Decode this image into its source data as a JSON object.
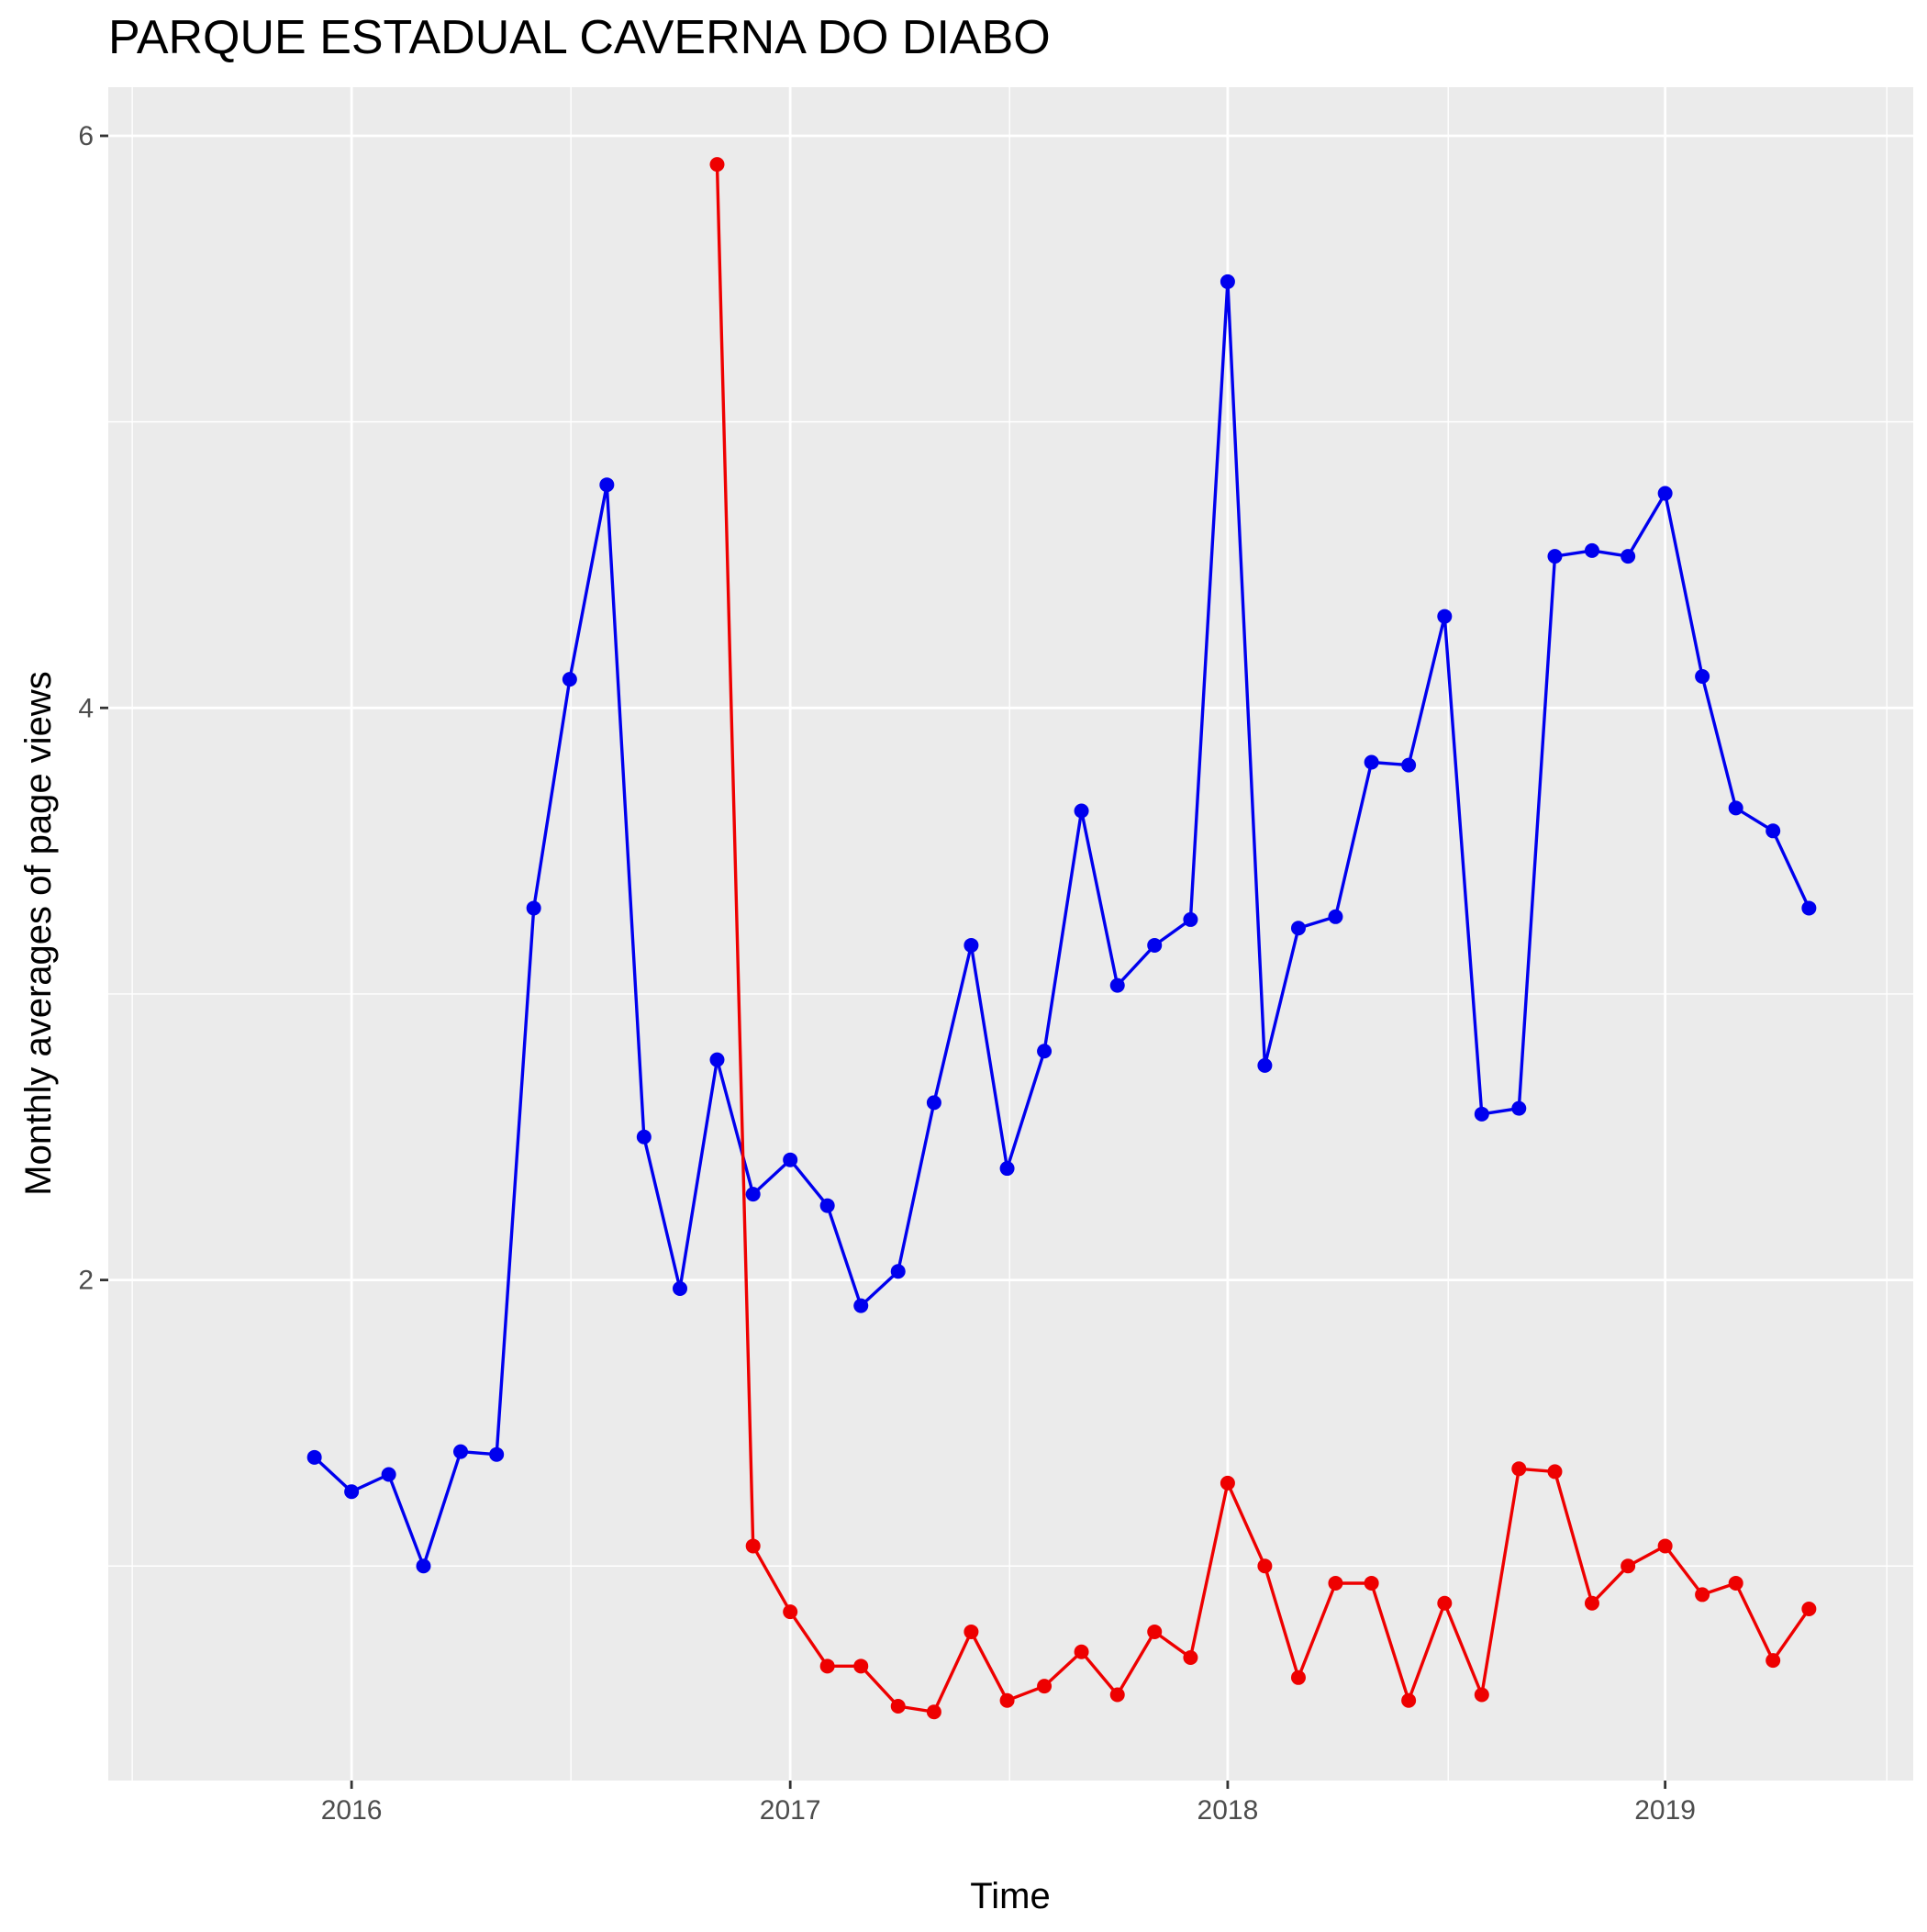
{
  "chart_data": {
    "type": "line",
    "title": "PARQUE ESTADUAL CAVERNA DO DIABO",
    "xlabel": "Time",
    "ylabel": "Monthly averages of page views",
    "xlim": [
      "2015-06-12",
      "2019-07-27"
    ],
    "ylim": [
      0.25,
      6.17
    ],
    "x_ticks": [
      {
        "date": "2016-01-01",
        "label": "2016"
      },
      {
        "date": "2017-01-01",
        "label": "2017"
      },
      {
        "date": "2018-01-01",
        "label": "2018"
      },
      {
        "date": "2019-01-01",
        "label": "2019"
      }
    ],
    "y_ticks": [
      {
        "value": 2,
        "label": "2"
      },
      {
        "value": 4,
        "label": "4"
      },
      {
        "value": 6,
        "label": "6"
      }
    ],
    "grid": true,
    "legend": "none",
    "series": [
      {
        "color": "#0000ee",
        "points": [
          [
            "2015-12-01",
            1.38
          ],
          [
            "2016-01-01",
            1.26
          ],
          [
            "2016-02-01",
            1.32
          ],
          [
            "2016-03-01",
            1.0
          ],
          [
            "2016-04-01",
            1.4
          ],
          [
            "2016-05-01",
            1.39
          ],
          [
            "2016-06-01",
            3.3
          ],
          [
            "2016-07-01",
            4.1
          ],
          [
            "2016-08-01",
            4.78
          ],
          [
            "2016-09-01",
            2.5
          ],
          [
            "2016-10-01",
            1.97
          ],
          [
            "2016-11-01",
            2.77
          ],
          [
            "2016-12-01",
            2.3
          ],
          [
            "2017-01-01",
            2.42
          ],
          [
            "2017-02-01",
            2.26
          ],
          [
            "2017-03-01",
            1.91
          ],
          [
            "2017-04-01",
            2.03
          ],
          [
            "2017-05-01",
            2.62
          ],
          [
            "2017-06-01",
            3.17
          ],
          [
            "2017-07-01",
            2.39
          ],
          [
            "2017-08-01",
            2.8
          ],
          [
            "2017-09-01",
            3.64
          ],
          [
            "2017-10-01",
            3.03
          ],
          [
            "2017-11-01",
            3.17
          ],
          [
            "2017-12-01",
            3.26
          ],
          [
            "2018-01-01",
            5.49
          ],
          [
            "2018-02-01",
            2.75
          ],
          [
            "2018-03-01",
            3.23
          ],
          [
            "2018-04-01",
            3.27
          ],
          [
            "2018-05-01",
            3.81
          ],
          [
            "2018-06-01",
            3.8
          ],
          [
            "2018-07-01",
            4.32
          ],
          [
            "2018-08-01",
            2.58
          ],
          [
            "2018-09-01",
            2.6
          ],
          [
            "2018-10-01",
            4.53
          ],
          [
            "2018-11-01",
            4.55
          ],
          [
            "2018-12-01",
            4.53
          ],
          [
            "2019-01-01",
            4.75
          ],
          [
            "2019-02-01",
            4.11
          ],
          [
            "2019-03-01",
            3.65
          ],
          [
            "2019-04-01",
            3.57
          ],
          [
            "2019-05-01",
            3.3
          ]
        ]
      },
      {
        "color": "#ee0000",
        "points": [
          [
            "2016-11-01",
            5.9
          ],
          [
            "2016-12-01",
            1.07
          ],
          [
            "2017-01-01",
            0.84
          ],
          [
            "2017-02-01",
            0.65
          ],
          [
            "2017-03-01",
            0.65
          ],
          [
            "2017-04-01",
            0.51
          ],
          [
            "2017-05-01",
            0.49
          ],
          [
            "2017-06-01",
            0.77
          ],
          [
            "2017-07-01",
            0.53
          ],
          [
            "2017-08-01",
            0.58
          ],
          [
            "2017-09-01",
            0.7
          ],
          [
            "2017-10-01",
            0.55
          ],
          [
            "2017-11-01",
            0.77
          ],
          [
            "2017-12-01",
            0.68
          ],
          [
            "2018-01-01",
            1.29
          ],
          [
            "2018-02-01",
            1.0
          ],
          [
            "2018-03-01",
            0.61
          ],
          [
            "2018-04-01",
            0.94
          ],
          [
            "2018-05-01",
            0.94
          ],
          [
            "2018-06-01",
            0.53
          ],
          [
            "2018-07-01",
            0.87
          ],
          [
            "2018-08-01",
            0.55
          ],
          [
            "2018-09-01",
            1.34
          ],
          [
            "2018-10-01",
            1.33
          ],
          [
            "2018-11-01",
            0.87
          ],
          [
            "2018-12-01",
            1.0
          ],
          [
            "2019-01-01",
            1.07
          ],
          [
            "2019-02-01",
            0.9
          ],
          [
            "2019-03-01",
            0.94
          ],
          [
            "2019-04-01",
            0.67
          ],
          [
            "2019-05-01",
            0.85
          ]
        ]
      }
    ]
  }
}
